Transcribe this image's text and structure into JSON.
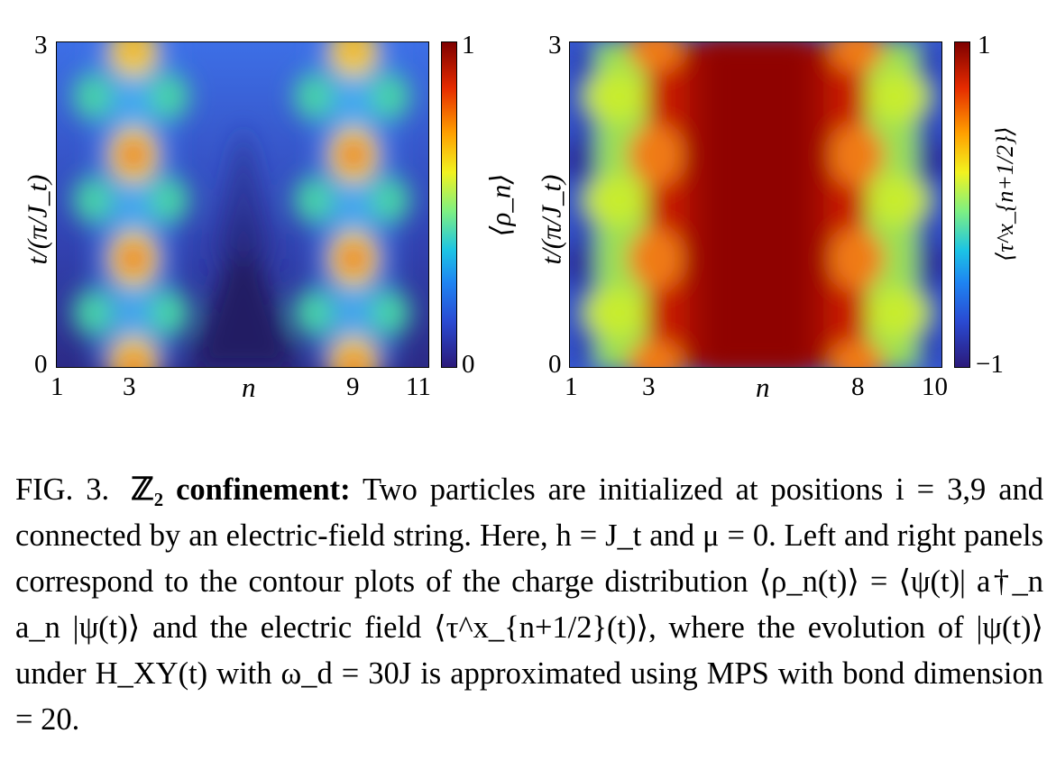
{
  "left_panel": {
    "y_label": "t/(π/J_t)",
    "y_ticks": [
      "3",
      "0"
    ],
    "x_ticks": [
      "1",
      "3",
      "9",
      "11"
    ],
    "x_label": "n",
    "colorbar_label": "⟨ρ_n⟩",
    "colorbar_ticks": [
      "1",
      "0"
    ],
    "colormap": "jet",
    "bright_columns": [
      "3",
      "9"
    ]
  },
  "right_panel": {
    "y_label": "t/(π/J_t)",
    "y_ticks": [
      "3",
      "0"
    ],
    "x_ticks": [
      "1",
      "3",
      "8",
      "10"
    ],
    "x_label": "n",
    "colorbar_label": "⟨τ^x_{n+1/2}⟩",
    "colorbar_ticks": [
      "1",
      "−1"
    ],
    "colormap": "jet"
  },
  "caption": {
    "fig_label": "FIG. 3.",
    "bold_title": "ℤ₂ confinement:",
    "text": "Two particles are initialized at positions i = 3,9 and connected by an electric-field string. Here, h = J_t and μ = 0. Left and right panels correspond to the contour plots of the charge distribution ⟨ρ_n(t)⟩ = ⟨ψ(t)| a†_n a_n |ψ(t)⟩ and the electric field ⟨τ^x_{n+1/2}(t)⟩, where the evolution of |ψ(t)⟩ under H_XY(t) with ω_d = 30J is approximated using MPS with bond dimension = 20."
  }
}
